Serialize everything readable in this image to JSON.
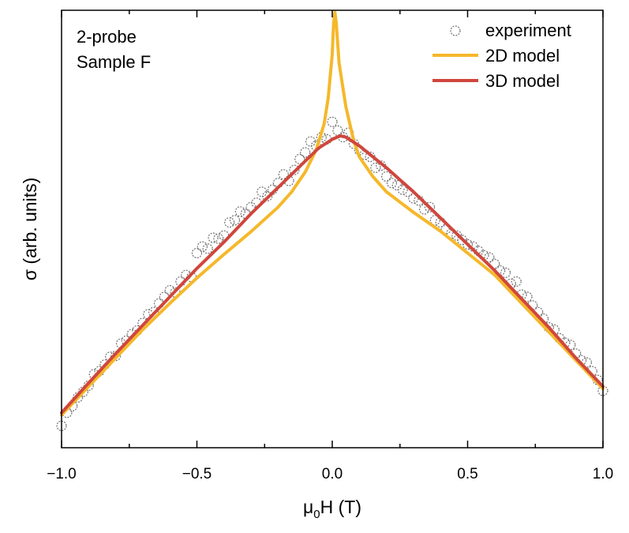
{
  "chart_data": {
    "type": "scatter",
    "xlabel": "μ",
    "xlabel_sub": "0",
    "xlabel_rest": "H (T)",
    "ylabel": "σ (arb. units)",
    "xlim": [
      -1.0,
      1.0
    ],
    "ylim": [
      0,
      100
    ],
    "xticks": [
      "−1.0",
      "−0.5",
      "0.0",
      "0.5",
      "1.0"
    ],
    "xtick_values": [
      -1.0,
      -0.5,
      0.0,
      0.5,
      1.0
    ],
    "annotation": [
      "2-probe",
      "Sample F"
    ],
    "legend": {
      "position": "top-right",
      "entries": [
        {
          "label": "experiment",
          "marker": "open-circle"
        },
        {
          "label": "2D model",
          "marker": "line"
        },
        {
          "label": "3D model",
          "marker": "line"
        }
      ]
    },
    "colors": {
      "experiment": "#707070",
      "model_2d": "#f5b82a",
      "model_3d": "#d0463c"
    },
    "series": [
      {
        "name": "2D model",
        "x": [
          -1.0,
          -0.9,
          -0.8,
          -0.7,
          -0.6,
          -0.5,
          -0.4,
          -0.3,
          -0.2,
          -0.15,
          -0.1,
          -0.06,
          -0.03,
          -0.015,
          0.0,
          0.005,
          0.01,
          0.015,
          0.025,
          0.05,
          0.08,
          0.1,
          0.15,
          0.2,
          0.3,
          0.4,
          0.5,
          0.6,
          0.7,
          0.8,
          0.9,
          1.0
        ],
        "y": [
          7.5,
          14.0,
          20.5,
          27.0,
          33.0,
          38.8,
          44.2,
          49.4,
          55.0,
          58.5,
          63.0,
          68.0,
          74.0,
          80.0,
          90.0,
          97.0,
          99.5,
          97.0,
          88.0,
          78.0,
          70.0,
          66.5,
          62.0,
          58.5,
          53.8,
          49.5,
          44.5,
          39.5,
          33.0,
          26.5,
          20.0,
          13.5
        ]
      },
      {
        "name": "3D model",
        "x": [
          -1.0,
          -0.9,
          -0.8,
          -0.7,
          -0.6,
          -0.5,
          -0.4,
          -0.3,
          -0.2,
          -0.1,
          -0.05,
          0.0,
          0.03,
          0.05,
          0.1,
          0.2,
          0.3,
          0.4,
          0.5,
          0.6,
          0.7,
          0.8,
          0.9,
          1.0
        ],
        "y": [
          8.0,
          14.8,
          21.5,
          28.0,
          34.5,
          41.0,
          47.0,
          53.5,
          59.5,
          65.5,
          68.5,
          70.5,
          71.3,
          71.0,
          69.0,
          64.0,
          58.5,
          52.5,
          46.5,
          40.5,
          34.0,
          27.5,
          20.5,
          14.0
        ]
      },
      {
        "name": "experiment",
        "x": [
          -1.0,
          -0.98,
          -0.96,
          -0.94,
          -0.92,
          -0.9,
          -0.88,
          -0.86,
          -0.84,
          -0.82,
          -0.8,
          -0.78,
          -0.76,
          -0.74,
          -0.72,
          -0.7,
          -0.68,
          -0.66,
          -0.64,
          -0.62,
          -0.6,
          -0.58,
          -0.56,
          -0.54,
          -0.52,
          -0.5,
          -0.48,
          -0.46,
          -0.44,
          -0.42,
          -0.4,
          -0.38,
          -0.36,
          -0.34,
          -0.32,
          -0.3,
          -0.28,
          -0.26,
          -0.24,
          -0.22,
          -0.2,
          -0.18,
          -0.16,
          -0.14,
          -0.12,
          -0.1,
          -0.08,
          -0.06,
          -0.04,
          -0.02,
          0.0,
          0.02,
          0.04,
          0.06,
          0.08,
          0.1,
          0.12,
          0.14,
          0.16,
          0.18,
          0.2,
          0.22,
          0.24,
          0.26,
          0.28,
          0.3,
          0.32,
          0.34,
          0.36,
          0.38,
          0.4,
          0.42,
          0.44,
          0.46,
          0.48,
          0.5,
          0.52,
          0.54,
          0.56,
          0.58,
          0.6,
          0.62,
          0.64,
          0.66,
          0.68,
          0.7,
          0.72,
          0.74,
          0.76,
          0.78,
          0.8,
          0.82,
          0.84,
          0.86,
          0.88,
          0.9,
          0.92,
          0.94,
          0.96,
          0.98,
          1.0
        ],
        "y": [
          5.0,
          8.0,
          9.5,
          11.5,
          12.8,
          14.2,
          16.8,
          17.5,
          19.0,
          20.8,
          21.0,
          23.8,
          24.5,
          26.0,
          26.8,
          28.5,
          30.5,
          31.0,
          33.0,
          34.5,
          36.0,
          35.5,
          38.0,
          39.5,
          39.0,
          44.5,
          46.0,
          45.5,
          48.0,
          47.8,
          48.5,
          51.5,
          52.0,
          54.0,
          53.5,
          55.0,
          56.0,
          58.5,
          57.5,
          59.0,
          60.5,
          62.5,
          61.0,
          63.5,
          66.0,
          67.5,
          70.0,
          69.0,
          71.0,
          70.5,
          74.5,
          72.5,
          71.0,
          72.0,
          69.5,
          68.0,
          67.0,
          66.5,
          64.0,
          64.5,
          62.0,
          60.5,
          60.0,
          59.0,
          58.5,
          57.0,
          56.5,
          54.5,
          55.0,
          52.0,
          51.5,
          50.0,
          49.0,
          48.5,
          47.5,
          46.5,
          46.0,
          45.0,
          44.0,
          43.5,
          42.0,
          40.5,
          40.0,
          37.5,
          38.0,
          35.0,
          34.5,
          32.5,
          31.0,
          29.5,
          27.5,
          27.0,
          25.0,
          24.0,
          23.5,
          21.5,
          20.0,
          19.5,
          17.5,
          15.5,
          13.0
        ]
      }
    ]
  }
}
